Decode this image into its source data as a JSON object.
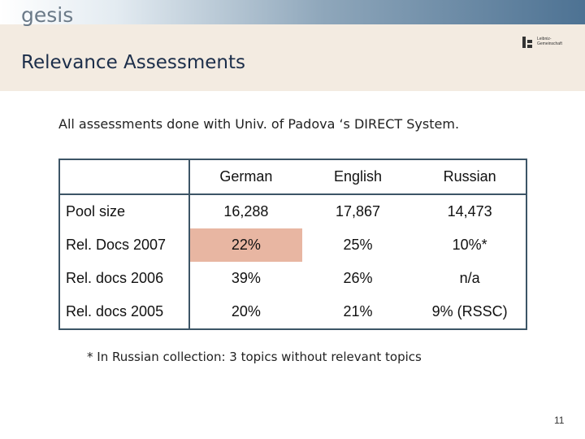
{
  "header": {
    "logo_text": "gesis",
    "leibniz_line1": "Leibniz-",
    "leibniz_line2": "Gemeinschaft"
  },
  "title": "Relevance Assessments",
  "intro": "All assessments done with Univ. of Padova ‘s DIRECT System.",
  "table": {
    "columns": [
      "",
      "German",
      "English",
      "Russian"
    ],
    "rows": [
      {
        "label": "Pool size",
        "values": [
          "16,288",
          "17,867",
          "14,473"
        ]
      },
      {
        "label": "Rel. Docs 2007",
        "values": [
          "22%",
          "25%",
          "10%*"
        ]
      },
      {
        "label": "Rel. docs 2006",
        "values": [
          "39%",
          "26%",
          "n/a"
        ]
      },
      {
        "label": "Rel. docs 2005",
        "values": [
          "20%",
          "21%",
          "9% (RSSC)"
        ]
      }
    ],
    "highlight_color": "#e8b6a2"
  },
  "footnote": "* In Russian collection: 3 topics without relevant topics",
  "page_number": "11",
  "colors": {
    "header_band": "#f3ebe1",
    "title": "#1c2e4a",
    "table_border": "#3c5566"
  }
}
